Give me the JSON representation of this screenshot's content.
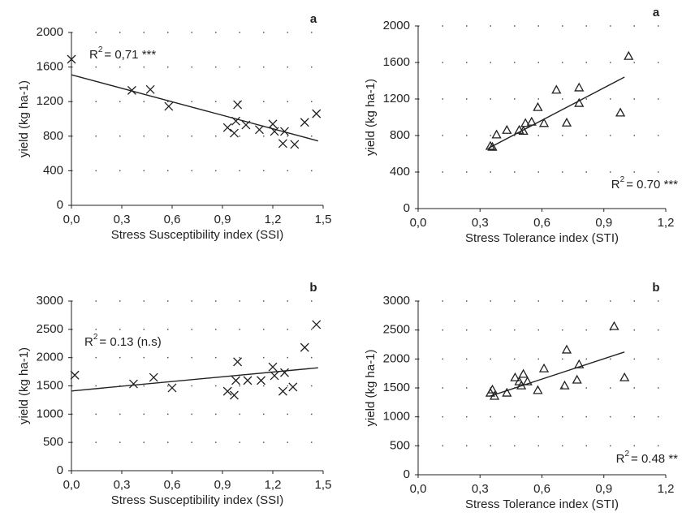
{
  "chart_data": [
    {
      "type": "scatter",
      "panel_label": "a",
      "marker": "x",
      "color": "#222",
      "xlabel": "Stress Susceptibility index (SSI)",
      "ylabel": "yield (kg ha-1)",
      "r2": {
        "base": "R",
        "sup": "2",
        "text": "= 0,71 ***"
      },
      "x": [
        0.0,
        0.36,
        0.47,
        0.58,
        0.93,
        0.97,
        0.99,
        0.98,
        1.04,
        1.12,
        1.2,
        1.21,
        1.27,
        1.26,
        1.33,
        1.39,
        1.46
      ],
      "y": [
        1690,
        1330,
        1340,
        1145,
        900,
        835,
        1165,
        975,
        930,
        875,
        940,
        855,
        855,
        715,
        705,
        960,
        1060
      ],
      "trendline": {
        "x": [
          0,
          1.47
        ],
        "y": [
          1510,
          745
        ]
      },
      "xlim": [
        0,
        1.5
      ],
      "ylim": [
        0,
        2000
      ],
      "xticks": [
        {
          "value": 0,
          "label": "0,0"
        },
        {
          "value": 0.3,
          "label": "0,3"
        },
        {
          "value": 0.6,
          "label": "0,6"
        },
        {
          "value": 0.9,
          "label": "0,9"
        },
        {
          "value": 1.2,
          "label": "1,2"
        },
        {
          "value": 1.5,
          "label": "1,5"
        }
      ],
      "yticks": [
        0,
        400,
        800,
        1200,
        1600,
        2000
      ],
      "grid": true
    },
    {
      "type": "scatter",
      "panel_label": "a",
      "marker": "triangle",
      "color": "#222",
      "xlabel": "Stress Tolerance index (STI)",
      "ylabel": "yield (kg ha-1)",
      "r2": {
        "base": "R",
        "sup": "2",
        "text": "= 0.70 ***"
      },
      "x": [
        1.02,
        0.67,
        0.78,
        0.78,
        0.58,
        0.72,
        0.98,
        0.61,
        0.49,
        0.51,
        0.52,
        0.55,
        0.43,
        0.38,
        0.35,
        0.36
      ],
      "y": [
        1670,
        1300,
        1325,
        1155,
        1110,
        940,
        1050,
        935,
        860,
        850,
        935,
        950,
        860,
        810,
        685,
        675
      ],
      "trendline": {
        "x": [
          0.34,
          1.0
        ],
        "y": [
          660,
          1440
        ]
      },
      "xlim": [
        0,
        1.2
      ],
      "ylim": [
        0,
        2000
      ],
      "xticks": [
        {
          "value": 0,
          "label": "0,0"
        },
        {
          "value": 0.3,
          "label": "0,3"
        },
        {
          "value": 0.6,
          "label": "0,6"
        },
        {
          "value": 0.9,
          "label": "0,9"
        },
        {
          "value": 1.2,
          "label": "1,2"
        }
      ],
      "yticks": [
        0,
        400,
        800,
        1200,
        1600,
        2000
      ],
      "grid": true
    },
    {
      "type": "scatter",
      "panel_label": "b",
      "marker": "x",
      "color": "#222",
      "xlabel": "Stress Susceptibility index (SSI)",
      "ylabel": "yield (kg ha-1)",
      "r2": {
        "base": "R",
        "sup": "2",
        "text": "= 0.13  (n.s)"
      },
      "x": [
        0.02,
        0.37,
        0.49,
        0.6,
        0.93,
        0.97,
        0.99,
        0.98,
        1.05,
        1.13,
        1.2,
        1.21,
        1.27,
        1.26,
        1.32,
        1.39,
        1.46
      ],
      "y": [
        1690,
        1535,
        1650,
        1465,
        1405,
        1335,
        1925,
        1595,
        1595,
        1595,
        1835,
        1680,
        1735,
        1405,
        1480,
        2180,
        2585
      ],
      "trendline": {
        "x": [
          0,
          1.47
        ],
        "y": [
          1410,
          1820
        ]
      },
      "xlim": [
        0,
        1.5
      ],
      "ylim": [
        0,
        3000
      ],
      "xticks": [
        {
          "value": 0,
          "label": "0,0"
        },
        {
          "value": 0.3,
          "label": "0,3"
        },
        {
          "value": 0.6,
          "label": "0,6"
        },
        {
          "value": 0.9,
          "label": "0,9"
        },
        {
          "value": 1.2,
          "label": "1,2"
        },
        {
          "value": 1.5,
          "label": "1,5"
        }
      ],
      "yticks": [
        0,
        500,
        1000,
        1500,
        2000,
        2500,
        3000
      ],
      "grid": true
    },
    {
      "type": "scatter",
      "panel_label": "b",
      "marker": "triangle",
      "color": "#222",
      "xlabel": "Stress Tolerance index (STI)",
      "ylabel": "yield (kg ha-1)",
      "r2": {
        "base": "R",
        "sup": "2",
        "text": "= 0.48 **"
      },
      "x": [
        0.95,
        1.0,
        0.72,
        0.78,
        0.77,
        0.71,
        0.61,
        0.58,
        0.47,
        0.49,
        0.5,
        0.51,
        0.53,
        0.43,
        0.37,
        0.35,
        0.36
      ],
      "y": [
        2565,
        1680,
        2160,
        1905,
        1640,
        1540,
        1835,
        1460,
        1680,
        1610,
        1540,
        1740,
        1610,
        1415,
        1360,
        1415,
        1470
      ],
      "trendline": {
        "x": [
          0.35,
          1.0
        ],
        "y": [
          1360,
          2120
        ]
      },
      "xlim": [
        0,
        1.2
      ],
      "ylim": [
        0,
        3000
      ],
      "xticks": [
        {
          "value": 0,
          "label": "0,0"
        },
        {
          "value": 0.3,
          "label": "0,3"
        },
        {
          "value": 0.6,
          "label": "0,6"
        },
        {
          "value": 0.9,
          "label": "0,9"
        },
        {
          "value": 1.2,
          "label": "1,2"
        }
      ],
      "yticks": [
        0,
        500,
        1000,
        1500,
        2000,
        2500,
        3000
      ],
      "grid": true
    }
  ]
}
